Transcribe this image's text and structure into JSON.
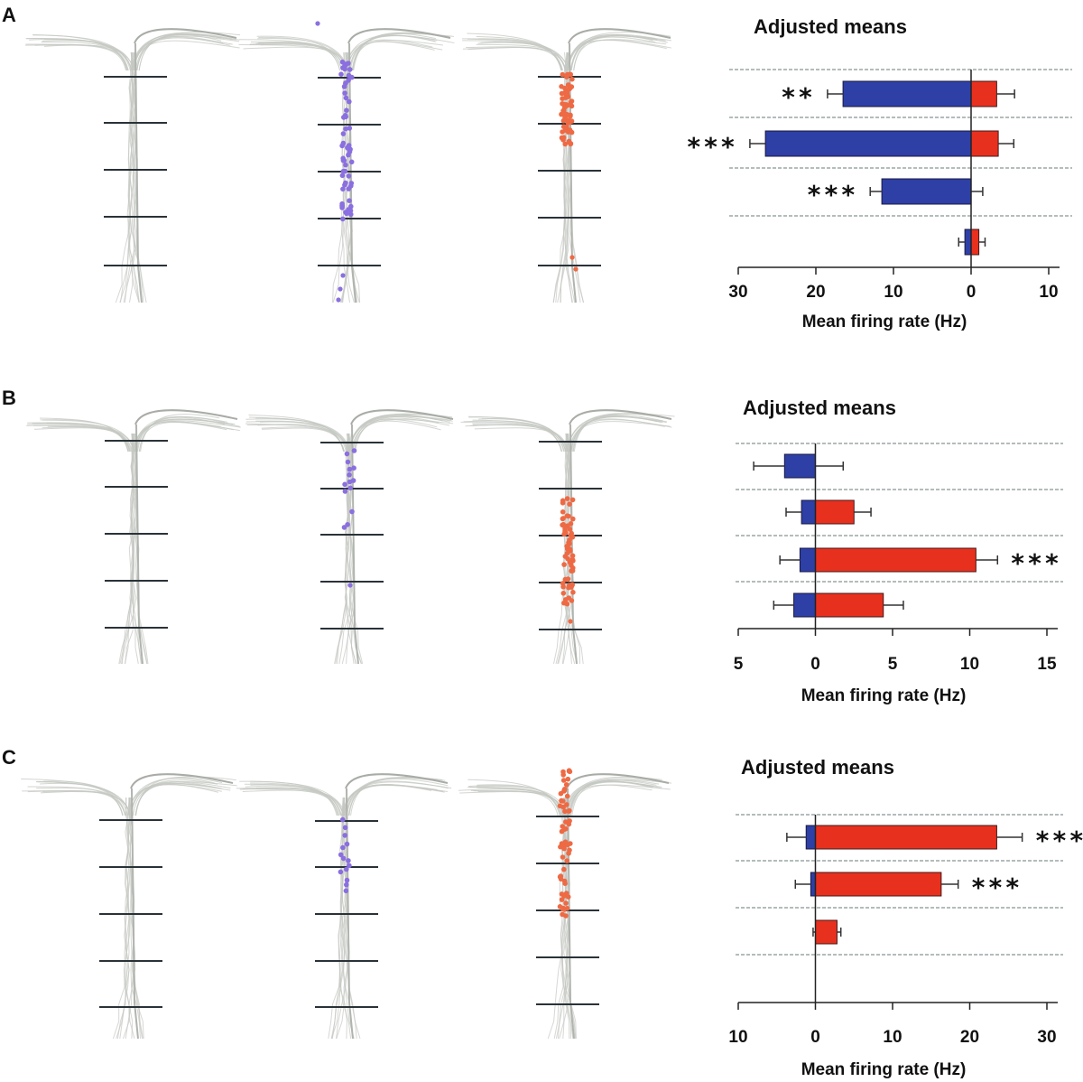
{
  "panels": [
    {
      "letter": "A",
      "sig_A": "**",
      "sig_B": "***",
      "sig_C": "***"
    },
    {
      "letter": "B",
      "sig_A": "***"
    },
    {
      "letter": "C",
      "sig_A": "***",
      "sig_B": "***"
    }
  ],
  "colors": {
    "left_bar": "#2e3fa6",
    "right_bar": "#e8301e",
    "neuron_trace": "#c4c8c2",
    "purple_dots": "#8a6fe0",
    "orange_dots": "#ee6a44",
    "marker_line": "#2a3238",
    "dashed_rule": "#6a7a7a"
  },
  "chart_data": [
    {
      "type": "bar",
      "orientation": "horizontal-diverging",
      "title": "Adjusted means",
      "xlabel": "Mean firing rate (Hz)",
      "xlim": [
        -30,
        10
      ],
      "ticks": [
        -30,
        -20,
        -10,
        0,
        10
      ],
      "tick_labels": [
        "30",
        "20",
        "10",
        "0",
        "10"
      ],
      "rows": [
        {
          "left": 16.5,
          "left_err": 2,
          "right": 3.3,
          "right_err": 2.3,
          "sig": "**",
          "sig_side": "left"
        },
        {
          "left": 26.5,
          "left_err": 2,
          "right": 3.5,
          "right_err": 2,
          "sig": "***",
          "sig_side": "left"
        },
        {
          "left": 11.5,
          "left_err": 1.5,
          "right": 0,
          "right_err": 1.5,
          "sig": "***",
          "sig_side": "left"
        },
        {
          "left": 0.8,
          "left_err": 0.8,
          "right": 1,
          "right_err": 0.8,
          "sig": "",
          "sig_side": ""
        }
      ]
    },
    {
      "type": "bar",
      "orientation": "horizontal-diverging",
      "title": "Adjusted means",
      "xlabel": "Mean firing rate (Hz)",
      "xlim": [
        -5,
        15
      ],
      "ticks": [
        -5,
        0,
        5,
        10,
        15
      ],
      "tick_labels": [
        "5",
        "0",
        "5",
        "10",
        "15"
      ],
      "rows": [
        {
          "left": 2,
          "left_err": 2,
          "right": 0,
          "right_err": 1.8,
          "sig": "",
          "sig_side": ""
        },
        {
          "left": 0.9,
          "left_err": 1,
          "right": 2.5,
          "right_err": 1.1,
          "sig": "",
          "sig_side": ""
        },
        {
          "left": 1,
          "left_err": 1.3,
          "right": 10.4,
          "right_err": 1.4,
          "sig": "***",
          "sig_side": "right"
        },
        {
          "left": 1.4,
          "left_err": 1.3,
          "right": 4.4,
          "right_err": 1.3,
          "sig": "",
          "sig_side": ""
        }
      ]
    },
    {
      "type": "bar",
      "orientation": "horizontal-diverging",
      "title": "Adjusted means",
      "xlabel": "Mean firing rate (Hz)",
      "xlim": [
        -10,
        30
      ],
      "ticks": [
        -10,
        0,
        10,
        20,
        30
      ],
      "tick_labels": [
        "10",
        "0",
        "10",
        "20",
        "30"
      ],
      "rows": [
        {
          "left": 1.2,
          "left_err": 2.5,
          "right": 23.5,
          "right_err": 3.3,
          "sig": "***",
          "sig_side": "right"
        },
        {
          "left": 0.6,
          "left_err": 2,
          "right": 16.3,
          "right_err": 2.2,
          "sig": "***",
          "sig_side": "right"
        },
        {
          "left": 0,
          "left_err": 0.3,
          "right": 2.8,
          "right_err": 0.5,
          "sig": "",
          "sig_side": ""
        },
        {
          "left": 0,
          "left_err": 0,
          "right": 0,
          "right_err": 0,
          "sig": "",
          "sig_side": ""
        }
      ]
    }
  ]
}
